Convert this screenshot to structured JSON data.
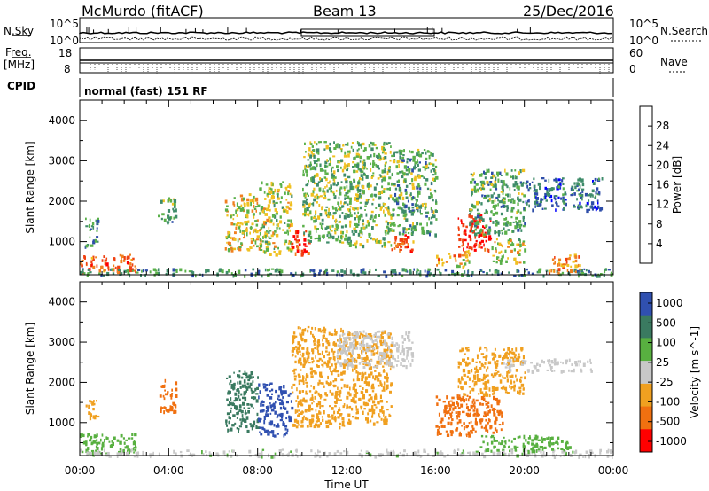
{
  "header": {
    "station": "McMurdo (fitACF)",
    "beam": "Beam 13",
    "date": "25/Dec/2016"
  },
  "top_panels": {
    "nsky_label": "N.Sky",
    "nsearch_label": "N.Search",
    "noise_ticks": [
      "10^5",
      "10^0"
    ],
    "freq_label_top": "Freq.",
    "freq_label_unit": "[MHz]",
    "freq_ticks": [
      "18",
      "8"
    ],
    "nave_label": "Nave",
    "nave_ticks": [
      "60",
      "0"
    ],
    "cpid_label": "CPID",
    "cpid_value": "normal (fast) 151 RF"
  },
  "colors": {
    "power": [
      "#0000ff",
      "#2d4da8",
      "#3f8c6a",
      "#5ab04a",
      "#f0c020",
      "#f08020",
      "#f04010",
      "#ff0000"
    ],
    "velocity": [
      "#3050b0",
      "#3a7a60",
      "#58b040",
      "#c8c8c8",
      "#f0a020",
      "#f07010",
      "#ff0000"
    ]
  },
  "chart_data": [
    {
      "type": "heatmap",
      "title": "Power",
      "xlabel": "Time UT",
      "ylabel": "Slant Range [km]",
      "xlim": [
        "00:00",
        "24:00"
      ],
      "x_ticks": [
        "00:00",
        "04:00",
        "08:00",
        "12:00",
        "16:00",
        "20:00",
        "00:00"
      ],
      "ylim": [
        180,
        4500
      ],
      "y_ticks": [
        1000,
        2000,
        3000,
        4000
      ],
      "colorbar": {
        "label": "Power [dB]",
        "ticks": [
          4,
          8,
          12,
          16,
          20,
          24,
          28
        ],
        "range": [
          0,
          32
        ]
      },
      "regions": [
        {
          "t_start": 0.0,
          "t_end": 2.5,
          "r_min": 250,
          "r_max": 700,
          "value": 24
        },
        {
          "t_start": 0.0,
          "t_end": 24.0,
          "r_min": 180,
          "r_max": 350,
          "value": 10
        },
        {
          "t_start": 0.2,
          "t_end": 0.8,
          "r_min": 900,
          "r_max": 1600,
          "value": 10
        },
        {
          "t_start": 3.5,
          "t_end": 4.3,
          "r_min": 1500,
          "r_max": 2100,
          "value": 12
        },
        {
          "t_start": 6.5,
          "t_end": 8.0,
          "r_min": 800,
          "r_max": 2200,
          "value": 18
        },
        {
          "t_start": 8.0,
          "t_end": 9.5,
          "r_min": 700,
          "r_max": 2500,
          "value": 16
        },
        {
          "t_start": 9.5,
          "t_end": 10.3,
          "r_min": 700,
          "r_max": 1300,
          "value": 28
        },
        {
          "t_start": 10.0,
          "t_end": 12.0,
          "r_min": 1000,
          "r_max": 3500,
          "value": 14
        },
        {
          "t_start": 12.0,
          "t_end": 14.0,
          "r_min": 900,
          "r_max": 3500,
          "value": 14
        },
        {
          "t_start": 14.0,
          "t_end": 15.0,
          "r_min": 800,
          "r_max": 1300,
          "value": 24
        },
        {
          "t_start": 14.0,
          "t_end": 16.0,
          "r_min": 1200,
          "r_max": 3300,
          "value": 12
        },
        {
          "t_start": 16.0,
          "t_end": 17.5,
          "r_min": 400,
          "r_max": 800,
          "value": 20
        },
        {
          "t_start": 17.0,
          "t_end": 18.5,
          "r_min": 800,
          "r_max": 1700,
          "value": 28
        },
        {
          "t_start": 17.5,
          "t_end": 20.0,
          "r_min": 1200,
          "r_max": 2800,
          "value": 12
        },
        {
          "t_start": 18.5,
          "t_end": 20.0,
          "r_min": 500,
          "r_max": 1100,
          "value": 16
        },
        {
          "t_start": 21.0,
          "t_end": 22.5,
          "r_min": 250,
          "r_max": 700,
          "value": 22
        },
        {
          "t_start": 20.0,
          "t_end": 23.5,
          "r_min": 1800,
          "r_max": 2600,
          "value": 8
        }
      ]
    },
    {
      "type": "heatmap",
      "title": "Velocity",
      "xlabel": "Time UT",
      "ylabel": "Slant Range [km]",
      "xlim": [
        "00:00",
        "24:00"
      ],
      "x_ticks": [
        "00:00",
        "04:00",
        "08:00",
        "12:00",
        "16:00",
        "20:00",
        "00:00"
      ],
      "ylim": [
        180,
        4500
      ],
      "y_ticks": [
        1000,
        2000,
        3000,
        4000
      ],
      "colorbar": {
        "label": "Velocity [m s^-1]",
        "ticks": [
          "1000",
          "500",
          "100",
          "25",
          "-25",
          "-100",
          "-500",
          "-1000"
        ]
      },
      "regions": [
        {
          "t_start": 0.0,
          "t_end": 2.5,
          "r_min": 250,
          "r_max": 750,
          "value": 100
        },
        {
          "t_start": 0.0,
          "t_end": 24.0,
          "r_min": 180,
          "r_max": 350,
          "value": 25
        },
        {
          "t_start": 0.2,
          "t_end": 0.8,
          "r_min": 1100,
          "r_max": 1600,
          "value": -100
        },
        {
          "t_start": 3.5,
          "t_end": 4.3,
          "r_min": 1300,
          "r_max": 2100,
          "value": -500
        },
        {
          "t_start": 6.5,
          "t_end": 8.0,
          "r_min": 800,
          "r_max": 2300,
          "value": 500
        },
        {
          "t_start": 8.0,
          "t_end": 9.5,
          "r_min": 700,
          "r_max": 2000,
          "value": 1000
        },
        {
          "t_start": 9.5,
          "t_end": 12.0,
          "r_min": 900,
          "r_max": 3400,
          "value": -100
        },
        {
          "t_start": 12.0,
          "t_end": 14.0,
          "r_min": 1000,
          "r_max": 3300,
          "value": -100
        },
        {
          "t_start": 11.5,
          "t_end": 15.0,
          "r_min": 2400,
          "r_max": 3300,
          "value": 0
        },
        {
          "t_start": 16.0,
          "t_end": 19.0,
          "r_min": 700,
          "r_max": 1700,
          "value": -500
        },
        {
          "t_start": 17.0,
          "t_end": 20.0,
          "r_min": 1700,
          "r_max": 2900,
          "value": -100
        },
        {
          "t_start": 18.0,
          "t_end": 22.0,
          "r_min": 300,
          "r_max": 700,
          "value": 100
        },
        {
          "t_start": 19.0,
          "t_end": 23.0,
          "r_min": 2300,
          "r_max": 2600,
          "value": 0
        }
      ]
    }
  ]
}
